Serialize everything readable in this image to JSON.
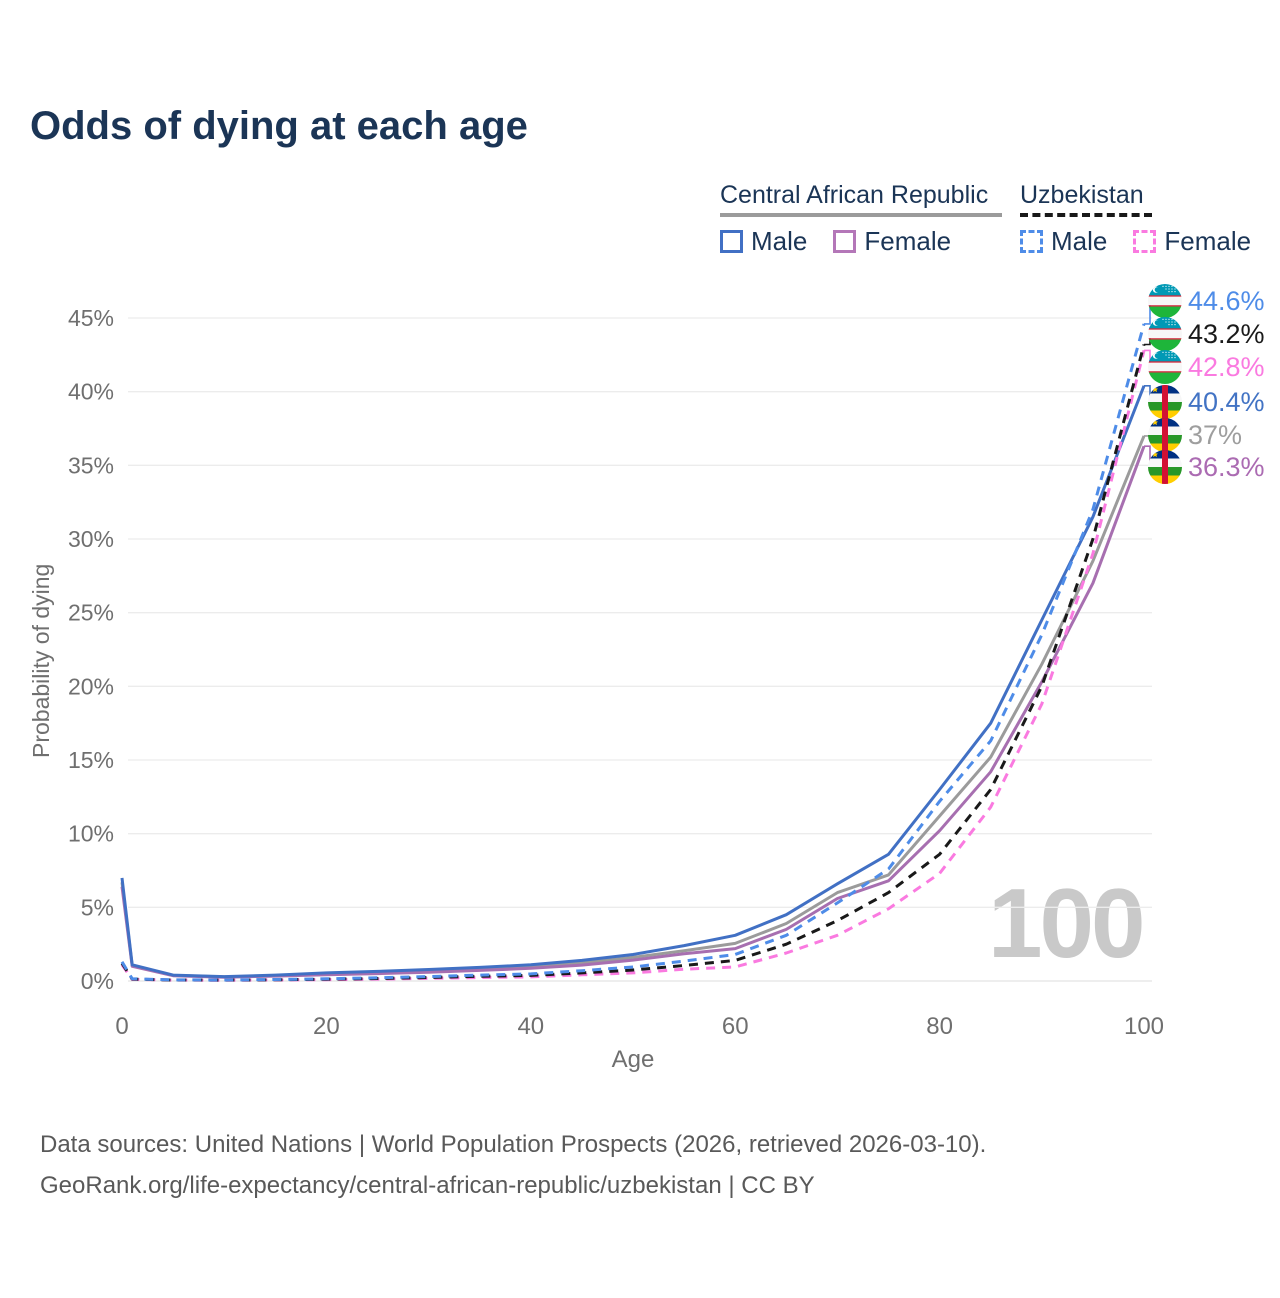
{
  "title": "Odds of dying at each age",
  "legend": {
    "car": {
      "label": "Central African Republic",
      "line_color": "#9b9b9b",
      "line_style": "solid",
      "items": [
        {
          "label": "Male",
          "color": "#4170c4",
          "style": "solid"
        },
        {
          "label": "Female",
          "color": "#b477b8",
          "style": "solid"
        }
      ]
    },
    "uz": {
      "label": "Uzbekistan",
      "line_color": "#191919",
      "line_style": "dashed",
      "items": [
        {
          "label": "Male",
          "color": "#4e8ce8",
          "style": "dashed"
        },
        {
          "label": "Female",
          "color": "#fa7ae0",
          "style": "dashed"
        }
      ]
    }
  },
  "watermark": "100",
  "axes": {
    "xlabel": "Age",
    "ylabel": "Probability of dying"
  },
  "footer": {
    "line1": "Data sources: United Nations | World Population Prospects (2026, retrieved 2026-03-10).",
    "line2": "GeoRank.org/life-expectancy/central-african-republic/uzbekistan | CC BY"
  },
  "icons": {
    "uz_flag": "uzbekistan-flag",
    "car_flag": "central-african-republic-flag"
  },
  "chart_data": {
    "type": "line",
    "title": "Odds of dying at each age",
    "xlabel": "Age",
    "ylabel": "Probability of dying",
    "xlim": [
      0,
      100
    ],
    "ylim": [
      0,
      45
    ],
    "x_ticks": [
      0,
      20,
      40,
      60,
      80,
      100
    ],
    "y_ticks": [
      0,
      5,
      10,
      15,
      20,
      25,
      30,
      35,
      40,
      45
    ],
    "y_tick_labels": [
      "0%",
      "5%",
      "10%",
      "15%",
      "20%",
      "25%",
      "30%",
      "35%",
      "40%",
      "45%"
    ],
    "grid": "horizontal",
    "legend_position": "top-right",
    "x": [
      0,
      1,
      5,
      10,
      15,
      20,
      25,
      30,
      35,
      40,
      45,
      50,
      55,
      60,
      65,
      70,
      75,
      80,
      85,
      90,
      95,
      100
    ],
    "series": [
      {
        "name": "Central African Republic",
        "color": "#9b9b9b",
        "dash": false,
        "values": [
          6.7,
          1.05,
          0.38,
          0.28,
          0.36,
          0.48,
          0.57,
          0.68,
          0.8,
          0.95,
          1.22,
          1.6,
          2.05,
          2.55,
          3.9,
          6.0,
          7.2,
          11.2,
          15.2,
          21.5,
          28.5,
          37.0
        ]
      },
      {
        "name": "Central African Republic Female",
        "color": "#a76fb0",
        "dash": false,
        "values": [
          6.4,
          1.0,
          0.36,
          0.26,
          0.33,
          0.42,
          0.5,
          0.6,
          0.72,
          0.86,
          1.08,
          1.42,
          1.85,
          2.2,
          3.5,
          5.6,
          6.8,
          10.2,
          14.2,
          20.3,
          27.0,
          36.3
        ]
      },
      {
        "name": "Central African Republic Male",
        "color": "#4170c4",
        "dash": false,
        "values": [
          7.0,
          1.1,
          0.4,
          0.3,
          0.4,
          0.55,
          0.65,
          0.78,
          0.92,
          1.1,
          1.4,
          1.8,
          2.4,
          3.1,
          4.5,
          6.6,
          8.6,
          13.0,
          17.5,
          24.5,
          31.5,
          40.4
        ]
      },
      {
        "name": "Uzbekistan Female",
        "color": "#fa7ae0",
        "dash": true,
        "values": [
          1.1,
          0.11,
          0.06,
          0.05,
          0.07,
          0.09,
          0.13,
          0.18,
          0.24,
          0.28,
          0.42,
          0.55,
          0.8,
          0.95,
          1.9,
          3.1,
          4.9,
          7.3,
          11.8,
          18.8,
          29.0,
          42.8
        ]
      },
      {
        "name": "Uzbekistan",
        "color": "#191919",
        "dash": true,
        "values": [
          1.2,
          0.13,
          0.07,
          0.06,
          0.08,
          0.12,
          0.17,
          0.24,
          0.32,
          0.38,
          0.55,
          0.75,
          1.05,
          1.4,
          2.5,
          4.1,
          6.0,
          8.6,
          13.0,
          20.0,
          30.0,
          43.2
        ]
      },
      {
        "name": "Uzbekistan Male",
        "color": "#4e8ce8",
        "dash": true,
        "values": [
          1.3,
          0.15,
          0.08,
          0.07,
          0.1,
          0.15,
          0.22,
          0.3,
          0.4,
          0.48,
          0.7,
          0.95,
          1.35,
          1.8,
          3.1,
          5.3,
          7.6,
          12.2,
          16.3,
          23.5,
          32.0,
          44.6
        ]
      }
    ],
    "end_labels": [
      {
        "text": "44.6%",
        "series": "Uzbekistan Male",
        "color": "#4e8ce8",
        "flag": "uz"
      },
      {
        "text": "43.2%",
        "series": "Uzbekistan",
        "color": "#1a1a1a",
        "flag": "uz"
      },
      {
        "text": "42.8%",
        "series": "Uzbekistan Female",
        "color": "#fa7ae0",
        "flag": "uz"
      },
      {
        "text": "40.4%",
        "series": "Central African Republic Male",
        "color": "#4273c4",
        "flag": "car"
      },
      {
        "text": "37%",
        "series": "Central African Republic",
        "color": "#9e9e9e",
        "flag": "car"
      },
      {
        "text": "36.3%",
        "series": "Central African Republic Female",
        "color": "#ab6bb2",
        "flag": "car"
      }
    ]
  }
}
